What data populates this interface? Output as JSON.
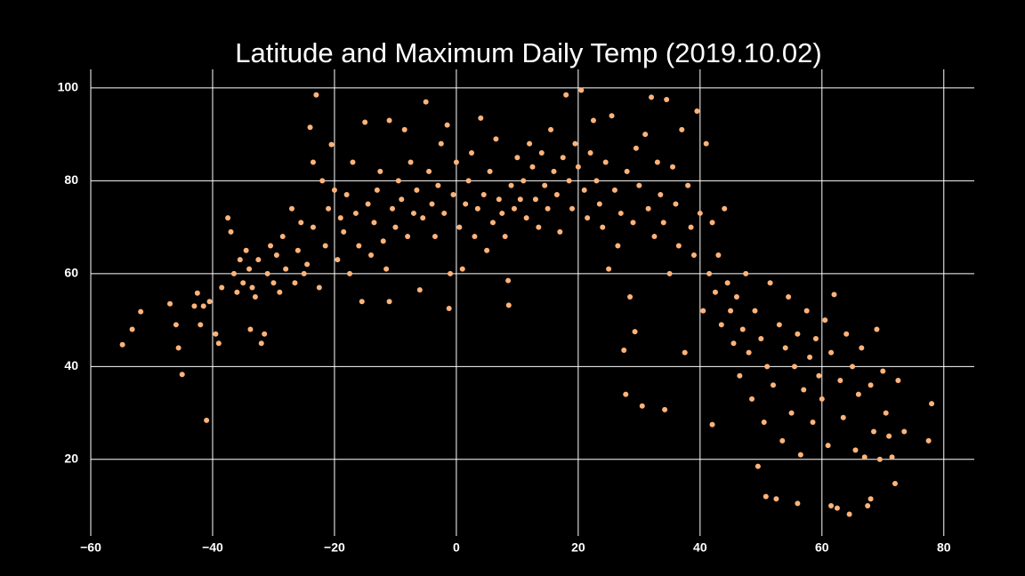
{
  "chart_data": {
    "type": "scatter",
    "title": "Latitude and Maximum Daily Temp (2019.10.02)",
    "color": "#ffb37a",
    "grid": true,
    "xlim": [
      -60,
      85
    ],
    "ylim": [
      3.5,
      104
    ],
    "xticks": [
      {
        "value": -60,
        "label": "−60"
      },
      {
        "value": -40,
        "label": "−40"
      },
      {
        "value": -20,
        "label": "−20"
      },
      0,
      20,
      40,
      60,
      80
    ],
    "yticks": [
      20,
      40,
      60,
      80,
      100
    ],
    "x": [
      -54.8,
      -53.2,
      -51.8,
      -47,
      -46,
      -45.6,
      -45,
      -43,
      -42.5,
      -42,
      -41.5,
      -41,
      -40.5,
      -39.5,
      -39,
      -38.5,
      -37.5,
      -37,
      -36.5,
      -36,
      -35.5,
      -35,
      -34.5,
      -34,
      -33.8,
      -33.5,
      -33,
      -32.5,
      -32,
      -31.5,
      -31,
      -30.5,
      -30,
      -29.5,
      -29,
      -28.5,
      -28,
      -27,
      -26.5,
      -26,
      -25.5,
      -25,
      -24.5,
      -24,
      -23.5,
      -23.5,
      -23,
      -22.5,
      -22,
      -21.5,
      -21,
      -20.5,
      -20,
      -19.5,
      -19,
      -18.5,
      -18,
      -17.5,
      -17,
      -16.5,
      -16,
      -15.5,
      -15,
      -14.5,
      -14,
      -13.5,
      -13,
      -12.5,
      -12,
      -11.5,
      -11,
      -11,
      -10.5,
      -10,
      -9.5,
      -9,
      -8.5,
      -8,
      -7.5,
      -7,
      -6.5,
      -6,
      -5.5,
      -5,
      -4.5,
      -4,
      -3.5,
      -3,
      -2.5,
      -2,
      -1.5,
      -1,
      -1.2,
      -0.5,
      0,
      0.5,
      1,
      1.5,
      2,
      2.5,
      3,
      3.5,
      4,
      4.5,
      5,
      5.5,
      6,
      6.5,
      7,
      7.5,
      8,
      8.5,
      8.6,
      9,
      9.5,
      10,
      10.5,
      11,
      11.5,
      12,
      12.5,
      13,
      13.5,
      14,
      14.5,
      15,
      15.5,
      16,
      16.5,
      17,
      17.5,
      18,
      18.5,
      19,
      19.5,
      20,
      20.5,
      21,
      21.5,
      22,
      22.5,
      23,
      23.5,
      24,
      24.5,
      25,
      25.5,
      26,
      26.5,
      27,
      27.5,
      27.8,
      28,
      28.5,
      29,
      29.3,
      29.5,
      30,
      30.5,
      31,
      31.5,
      32,
      32.5,
      33,
      33.5,
      34,
      34.2,
      34.5,
      35,
      35.5,
      36,
      36.5,
      37,
      37.5,
      38,
      38.5,
      39,
      39.5,
      40,
      40.5,
      41,
      41.5,
      42,
      42,
      42.5,
      43,
      43.5,
      44,
      44.5,
      45,
      45.5,
      46,
      46.5,
      47,
      47.5,
      48,
      48.5,
      49,
      49.5,
      50,
      50.5,
      50.8,
      51,
      51.5,
      52,
      52.5,
      53,
      53.5,
      54,
      54.5,
      55,
      55.5,
      56,
      56,
      56.5,
      57,
      57.5,
      58,
      58.5,
      59,
      59.5,
      60,
      60.5,
      61,
      61.5,
      61.5,
      62,
      62.5,
      63,
      63.5,
      64,
      64.5,
      65,
      65.5,
      66,
      66.5,
      67,
      67.5,
      68,
      68,
      68.5,
      69,
      69.5,
      70,
      70.5,
      71,
      71.5,
      72,
      72.5,
      73.5,
      77.5,
      78
    ],
    "values": [
      44.7,
      48,
      51.8,
      53.5,
      49,
      44,
      38.3,
      53,
      55.8,
      49,
      53,
      28.4,
      54,
      47,
      45,
      57,
      72,
      69,
      60,
      56,
      63,
      58,
      65,
      61,
      48,
      57,
      55,
      63,
      45,
      47,
      60,
      66,
      58,
      64,
      56,
      68,
      61,
      74,
      58,
      65,
      71,
      60,
      62,
      91.5,
      84,
      70,
      98.5,
      57,
      80,
      66,
      74,
      87.8,
      78,
      63,
      72,
      69,
      77,
      60,
      84,
      73,
      66,
      54,
      92.6,
      75,
      64,
      71,
      78,
      82,
      67,
      61,
      93,
      54,
      74,
      70,
      80,
      76,
      91,
      68,
      84,
      73,
      78,
      56.5,
      72,
      97,
      82,
      75,
      68,
      79,
      88,
      73,
      92,
      60,
      52.5,
      77,
      84,
      70,
      61,
      75,
      80,
      86,
      68,
      74,
      93.5,
      77,
      65,
      82,
      71,
      89,
      76,
      73,
      68,
      58.5,
      53.2,
      79,
      74,
      85,
      76,
      80,
      72,
      88,
      83,
      76,
      70,
      86,
      79,
      74,
      91,
      82,
      77,
      69,
      85,
      98.5,
      80,
      74,
      88,
      83,
      99.5,
      78,
      72,
      86,
      93,
      80,
      75,
      70,
      84,
      61,
      94,
      78,
      66,
      73,
      43.5,
      34,
      82,
      55,
      71,
      47.5,
      87,
      79,
      31.5,
      90,
      74,
      98,
      68,
      84,
      77,
      71,
      30.7,
      97.5,
      60,
      83,
      75,
      66,
      91,
      43,
      79,
      70,
      64,
      95,
      73,
      52,
      88,
      60,
      71,
      27.5,
      56,
      64,
      49,
      74,
      58,
      52,
      45,
      55,
      38,
      48,
      60,
      43,
      33,
      52,
      18.5,
      46,
      28,
      12,
      40,
      58,
      36,
      11.5,
      49,
      24,
      44,
      55,
      30,
      40,
      10.5,
      47,
      21,
      35,
      52,
      42,
      28,
      46,
      38,
      33,
      50,
      23,
      10,
      43,
      55.5,
      9.5,
      37,
      29,
      47,
      8.2,
      40,
      22,
      34,
      44,
      20.5,
      10,
      11.5,
      36,
      26,
      48,
      20,
      39,
      30,
      25,
      20.5,
      14.8,
      37,
      26,
      24,
      32
    ]
  }
}
